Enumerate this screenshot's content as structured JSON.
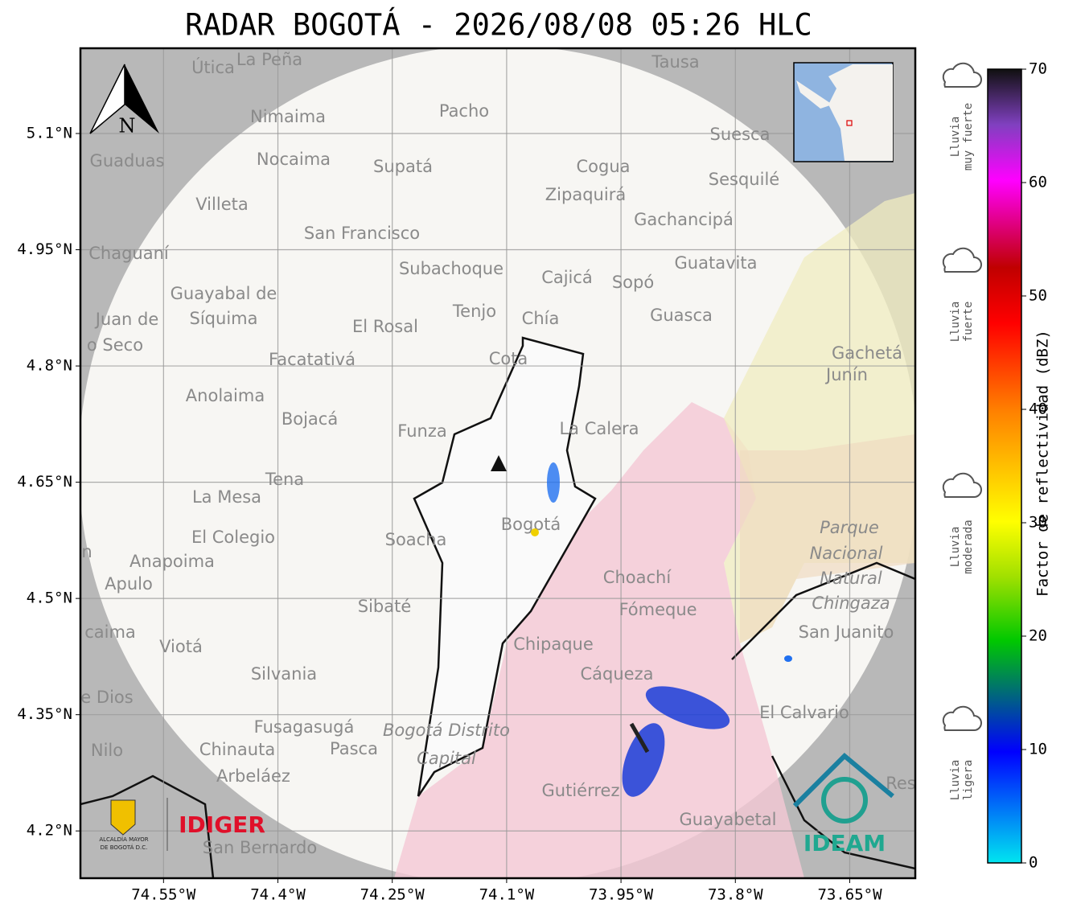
{
  "title": "RADAR BOGOTÁ - 2026/08/08 05:26 HLC",
  "map": {
    "xlim": [
      -74.659,
      -73.564
    ],
    "ylim": [
      4.139,
      5.21
    ],
    "xticks": [
      {
        "value": -74.55,
        "label": "74.55°W"
      },
      {
        "value": -74.4,
        "label": "74.4°W"
      },
      {
        "value": -74.25,
        "label": "74.25°W"
      },
      {
        "value": -74.1,
        "label": "74.1°W"
      },
      {
        "value": -73.95,
        "label": "73.95°W"
      },
      {
        "value": -73.8,
        "label": "73.8°W"
      },
      {
        "value": -73.65,
        "label": "73.65°W"
      }
    ],
    "yticks": [
      {
        "value": 5.1,
        "label": "5.1°N"
      },
      {
        "value": 4.95,
        "label": "4.95°N"
      },
      {
        "value": 4.8,
        "label": "4.8°N"
      },
      {
        "value": 4.65,
        "label": "4.65°N"
      },
      {
        "value": 4.5,
        "label": "4.5°N"
      },
      {
        "value": 4.35,
        "label": "4.35°N"
      },
      {
        "value": 4.2,
        "label": "4.2°N"
      }
    ],
    "grid": true,
    "north": "N",
    "places": [
      "Útica",
      "La Peña",
      "Tausa",
      "Pacho",
      "Nimaima",
      "Guaduas",
      "Nocaima",
      "Supatá",
      "Cogua",
      "Suesca",
      "Sesquilé",
      "Zipaquirá",
      "Villeta",
      "Gachancipá",
      "San Francisco",
      "Chaguaní",
      "Guatavita",
      "Subachoque",
      "Cajicá",
      "Sopó",
      "Guayabal de",
      "Síquima",
      "Tenjo",
      "Juan de",
      "Chía",
      "Guasca",
      "El Rosal",
      "o Seco",
      "Cota",
      "Facatativá",
      "Gachetá",
      "Junín",
      "Anolaima",
      "Bojacá",
      "Funza",
      "La Calera",
      "Tena",
      "La Mesa",
      "Bogotá",
      "Parque",
      "Soacha",
      "El Colegio",
      "Nacional",
      "n",
      "Anapoima",
      "Natural",
      "Apulo",
      "Choachí",
      "Chingaza",
      "Sibaté",
      "Fómeque",
      "San Juanito",
      "caima",
      "Viotá",
      "Chipaque",
      "Silvania",
      "Cáqueza",
      "e Dios",
      "El Calvario",
      "Fusagasugá",
      "Bogotá Distrito",
      "Capital",
      "Nilo",
      "Chinauta",
      "Pasca",
      "Arbeláez",
      "Gutiérrez",
      "Res",
      "Guayabetal",
      "San Bernardo"
    ],
    "logos": {
      "alcaldia": "ALCALDÍA MAYOR",
      "alcaldia2": "DE BOGOTÁ D.C.",
      "idiger": "IDIGER",
      "ideam": "IDEAM"
    }
  },
  "colorbar": {
    "label": "Factor de reflectividad (dBZ)",
    "lim": [
      0,
      70
    ],
    "ticks": [
      0,
      10,
      20,
      30,
      40,
      50,
      60,
      70
    ],
    "rain": [
      [
        "Lluvia",
        "muy fuerte"
      ],
      [
        "Lluvia",
        "fuerte"
      ],
      [
        "Lluvia",
        "moderada"
      ],
      [
        "Lluvia",
        "ligera"
      ]
    ]
  }
}
